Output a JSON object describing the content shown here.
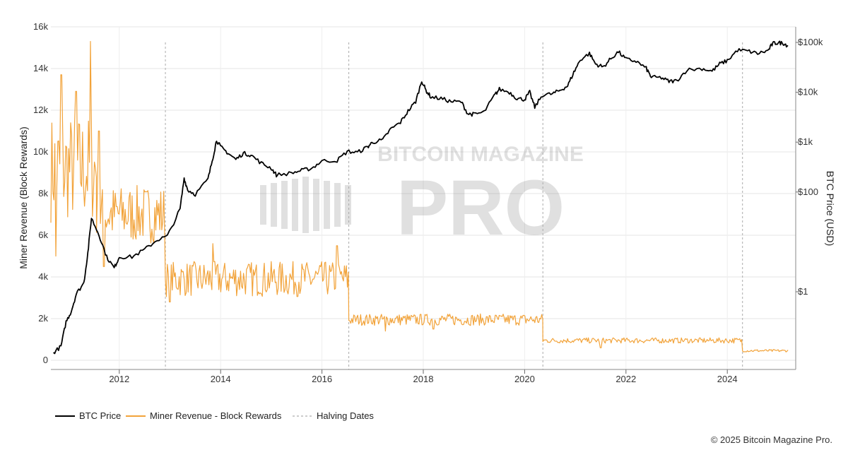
{
  "chart_data": {
    "type": "line",
    "title": "",
    "copyright": "© 2025 Bitcoin Magazine Pro.",
    "watermark": {
      "line1": "BITCOIN MAGAZINE",
      "line2": "PRO"
    },
    "left_axis": {
      "label": "Miner Revenue (Block Rewards)",
      "ticks": [
        0,
        2000,
        4000,
        6000,
        8000,
        10000,
        12000,
        14000,
        16000
      ],
      "tick_labels": [
        "0",
        "2k",
        "4k",
        "6k",
        "8k",
        "10k",
        "12k",
        "14k",
        "16k"
      ],
      "range": [
        0,
        16000
      ]
    },
    "right_axis": {
      "label": "BTC Price (USD)",
      "scale": "log",
      "ticks": [
        1,
        100,
        1000,
        10000,
        100000
      ],
      "tick_labels": [
        "$1",
        "$100",
        "$1k",
        "$10k",
        "$100k"
      ],
      "range": [
        0.01,
        200000
      ]
    },
    "x_axis": {
      "range": [
        2010.65,
        2025.35
      ],
      "ticks": [
        2012,
        2014,
        2016,
        2018,
        2020,
        2022,
        2024
      ],
      "tick_labels": [
        "2012",
        "2014",
        "2016",
        "2018",
        "2020",
        "2022",
        "2024"
      ]
    },
    "grid": true,
    "legend_position": "bottom-left",
    "halving_dates": [
      2012.91,
      2016.53,
      2020.36,
      2024.3
    ],
    "series": [
      {
        "name": "BTC Price",
        "axis": "right",
        "color": "#000000",
        "points": [
          [
            2010.7,
            0.06
          ],
          [
            2010.85,
            0.08
          ],
          [
            2010.95,
            0.25
          ],
          [
            2011.05,
            0.4
          ],
          [
            2011.15,
            0.9
          ],
          [
            2011.3,
            1.5
          ],
          [
            2011.38,
            6
          ],
          [
            2011.45,
            30
          ],
          [
            2011.6,
            14
          ],
          [
            2011.75,
            5
          ],
          [
            2011.9,
            3
          ],
          [
            2012.0,
            5
          ],
          [
            2012.25,
            5
          ],
          [
            2012.5,
            7
          ],
          [
            2012.75,
            11
          ],
          [
            2012.95,
            13
          ],
          [
            2013.2,
            45
          ],
          [
            2013.28,
            190
          ],
          [
            2013.35,
            110
          ],
          [
            2013.5,
            90
          ],
          [
            2013.75,
            180
          ],
          [
            2013.85,
            500
          ],
          [
            2013.92,
            1100
          ],
          [
            2014.0,
            800
          ],
          [
            2014.15,
            600
          ],
          [
            2014.3,
            450
          ],
          [
            2014.45,
            600
          ],
          [
            2014.6,
            550
          ],
          [
            2014.8,
            380
          ],
          [
            2015.0,
            300
          ],
          [
            2015.1,
            220
          ],
          [
            2015.4,
            240
          ],
          [
            2015.6,
            270
          ],
          [
            2015.8,
            300
          ],
          [
            2016.0,
            420
          ],
          [
            2016.3,
            430
          ],
          [
            2016.5,
            650
          ],
          [
            2016.7,
            620
          ],
          [
            2016.9,
            800
          ],
          [
            2017.0,
            1000
          ],
          [
            2017.2,
            1100
          ],
          [
            2017.35,
            1800
          ],
          [
            2017.55,
            2500
          ],
          [
            2017.7,
            4200
          ],
          [
            2017.85,
            6500
          ],
          [
            2017.97,
            17000
          ],
          [
            2018.05,
            11000
          ],
          [
            2018.15,
            8000
          ],
          [
            2018.35,
            7500
          ],
          [
            2018.55,
            6500
          ],
          [
            2018.75,
            6400
          ],
          [
            2018.88,
            3700
          ],
          [
            2019.0,
            3600
          ],
          [
            2019.2,
            4000
          ],
          [
            2019.4,
            8500
          ],
          [
            2019.5,
            11500
          ],
          [
            2019.7,
            10000
          ],
          [
            2019.85,
            7500
          ],
          [
            2020.0,
            7200
          ],
          [
            2020.1,
            10000
          ],
          [
            2020.2,
            5000
          ],
          [
            2020.35,
            8800
          ],
          [
            2020.55,
            9300
          ],
          [
            2020.7,
            11000
          ],
          [
            2020.85,
            13500
          ],
          [
            2020.97,
            25000
          ],
          [
            2021.1,
            45000
          ],
          [
            2021.28,
            60000
          ],
          [
            2021.4,
            37000
          ],
          [
            2021.55,
            32000
          ],
          [
            2021.7,
            47000
          ],
          [
            2021.85,
            65000
          ],
          [
            2022.0,
            46000
          ],
          [
            2022.2,
            42000
          ],
          [
            2022.4,
            30000
          ],
          [
            2022.5,
            20000
          ],
          [
            2022.7,
            19500
          ],
          [
            2022.85,
            16500
          ],
          [
            2023.0,
            17000
          ],
          [
            2023.2,
            28000
          ],
          [
            2023.5,
            30000
          ],
          [
            2023.7,
            26500
          ],
          [
            2023.85,
            37000
          ],
          [
            2024.0,
            43000
          ],
          [
            2024.2,
            70000
          ],
          [
            2024.4,
            67000
          ],
          [
            2024.6,
            60000
          ],
          [
            2024.8,
            68000
          ],
          [
            2024.9,
            95000
          ],
          [
            2025.0,
            98000
          ],
          [
            2025.1,
            97000
          ],
          [
            2025.2,
            85000
          ]
        ]
      },
      {
        "name": "Miner Revenue - Block Rewards",
        "axis": "left",
        "color": "#f2a33a",
        "segments": [
          {
            "x": [
              2010.65,
              2011.55
            ],
            "base": 9200,
            "amp": 2600,
            "spikes": [
              [
                2010.85,
                13700
              ],
              [
                2011.15,
                12900
              ],
              [
                2011.43,
                15300
              ],
              [
                2010.75,
                5000
              ]
            ]
          },
          {
            "x": [
              2011.55,
              2012.91
            ],
            "base": 7000,
            "amp": 1400,
            "spikes": [
              [
                2011.6,
                11000
              ],
              [
                2011.7,
                4500
              ]
            ]
          },
          {
            "x": [
              2012.91,
              2016.53
            ],
            "base": 3900,
            "amp": 850,
            "spikes": [
              [
                2013.85,
                5600
              ],
              [
                2013.0,
                2800
              ],
              [
                2016.3,
                5500
              ]
            ]
          },
          {
            "x": [
              2016.53,
              2020.36
            ],
            "base": 1950,
            "amp": 280,
            "spikes": [
              [
                2017.25,
                1400
              ],
              [
                2018.2,
                1500
              ]
            ]
          },
          {
            "x": [
              2020.36,
              2024.3
            ],
            "base": 950,
            "amp": 130,
            "spikes": [
              [
                2021.5,
                600
              ]
            ]
          },
          {
            "x": [
              2024.3,
              2025.2
            ],
            "base": 460,
            "amp": 60,
            "spikes": []
          }
        ]
      }
    ]
  },
  "legend": {
    "btc_price": "BTC Price",
    "miner_revenue": "Miner Revenue - Block Rewards",
    "halving": "Halving Dates"
  }
}
